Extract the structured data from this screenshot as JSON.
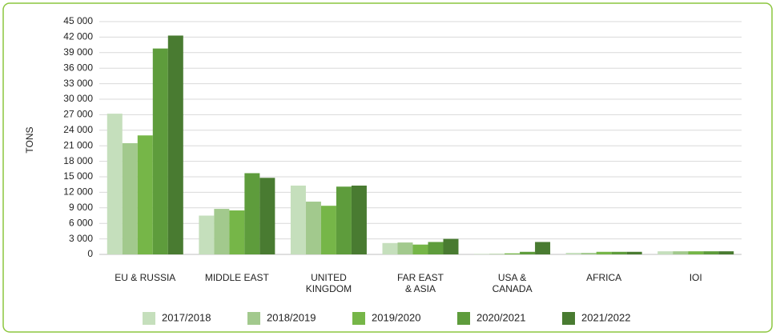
{
  "chart_data": {
    "type": "bar",
    "ylabel": "TONS",
    "categories": [
      "EU & RUSSIA",
      "MIDDLE EAST",
      "UNITED\nKINGDOM",
      "FAR EAST\n& ASIA",
      "USA &\nCANADA",
      "AFRICA",
      "IOI"
    ],
    "series": [
      {
        "name": "2017/2018",
        "color": "#c5dfbc",
        "values": [
          27200,
          7500,
          13300,
          2200,
          100,
          300,
          600
        ]
      },
      {
        "name": "2018/2019",
        "color": "#a2c98d",
        "values": [
          21500,
          8800,
          10200,
          2300,
          100,
          300,
          600
        ]
      },
      {
        "name": "2019/2020",
        "color": "#76b648",
        "values": [
          23000,
          8500,
          9400,
          1900,
          200,
          500,
          600
        ]
      },
      {
        "name": "2020/2021",
        "color": "#5e9c3c",
        "values": [
          39800,
          15700,
          13100,
          2400,
          500,
          500,
          600
        ]
      },
      {
        "name": "2021/2022",
        "color": "#497b31",
        "values": [
          42300,
          14800,
          13300,
          3000,
          2400,
          500,
          600
        ]
      }
    ],
    "ylim": [
      0,
      45000
    ],
    "yticks": [
      0,
      {
        "value": 3000,
        "label": "3 000"
      },
      {
        "value": 6000,
        "label": "6 000"
      },
      {
        "value": 9000,
        "label": "9 000"
      },
      {
        "value": 12000,
        "label": "12 000"
      },
      {
        "value": 15000,
        "label": "15 000"
      },
      {
        "value": 18000,
        "label": "18 000"
      },
      {
        "value": 21000,
        "label": "21 000"
      },
      {
        "value": 24000,
        "label": "24 000"
      },
      {
        "value": 27000,
        "label": "27 000"
      },
      {
        "value": 30000,
        "label": "30 000"
      },
      {
        "value": 33000,
        "label": "33 000"
      },
      {
        "value": 36000,
        "label": "36 000"
      },
      {
        "value": 39000,
        "label": "39 000"
      },
      {
        "value": 42000,
        "label": "42 000"
      },
      {
        "value": 45000,
        "label": "45 000"
      }
    ],
    "grid": true,
    "legend": "bottom"
  }
}
